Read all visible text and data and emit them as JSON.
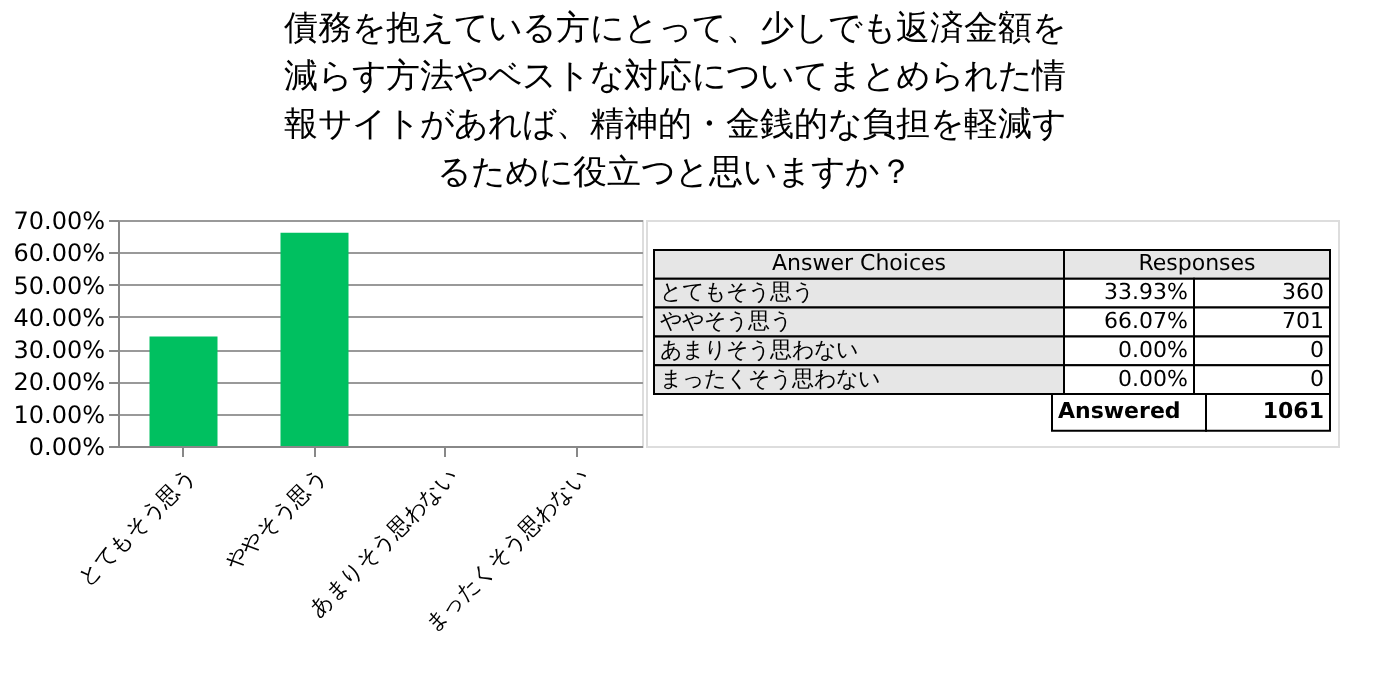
{
  "chart_data": [
    {
      "type": "bar",
      "title": [
        "債務を抱えている方にとって、少しでも返済金額を",
        "減らす方法やベストな対応についてまとめられた情",
        "報サイトがあれば、精神的・金銭的な負担を軽減す",
        "るために役立つと思いますか？"
      ],
      "categories": [
        "とてもそう思う",
        "ややそう思う",
        "あまりそう思わない",
        "まったくそう思わない"
      ],
      "values": [
        33.93,
        66.07,
        0,
        0
      ],
      "color": "#00c060",
      "ylim": [
        0,
        70
      ],
      "yticks": [
        {
          "value": 0,
          "label": "0.00%"
        },
        {
          "value": 10,
          "label": "10.00%"
        },
        {
          "value": 20,
          "label": "20.00%"
        },
        {
          "value": 30,
          "label": "30.00%"
        },
        {
          "value": 40,
          "label": "40.00%"
        },
        {
          "value": 50,
          "label": "50.00%"
        },
        {
          "value": 60,
          "label": "60.00%"
        },
        {
          "value": 70,
          "label": "70.00%"
        }
      ],
      "grid": "y"
    },
    {
      "type": "other",
      "annotations": [
        "Answer Choices",
        "Responses",
        "とてもそう思う",
        "33.93%",
        "360",
        "ややそう思う",
        "66.07%",
        "701",
        "あまりそう思わない",
        "0.00%",
        "0",
        "まったくそう思わない",
        "0.00%",
        "0",
        "Answered",
        "1061"
      ]
    }
  ]
}
